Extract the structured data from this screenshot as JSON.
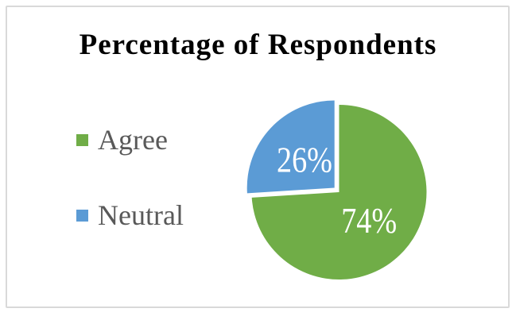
{
  "chart_data": {
    "type": "pie",
    "title": "Percentage of Respondents",
    "slices": [
      {
        "label": "Agree",
        "value": 74,
        "percent_label": "74%",
        "color": "#70AD47",
        "exploded": false
      },
      {
        "label": "Neutral",
        "value": 26,
        "percent_label": "26%",
        "color": "#5B9BD5",
        "exploded": true
      }
    ],
    "total": 100,
    "start_angle_deg": 0,
    "direction": "clockwise",
    "legend_position": "left",
    "data_label_color": "#FFFFFF",
    "legend_text_color": "#595959",
    "title_color": "#000000",
    "chart_border_color": "#D9D9D9",
    "background_color": "#FFFFFF"
  }
}
